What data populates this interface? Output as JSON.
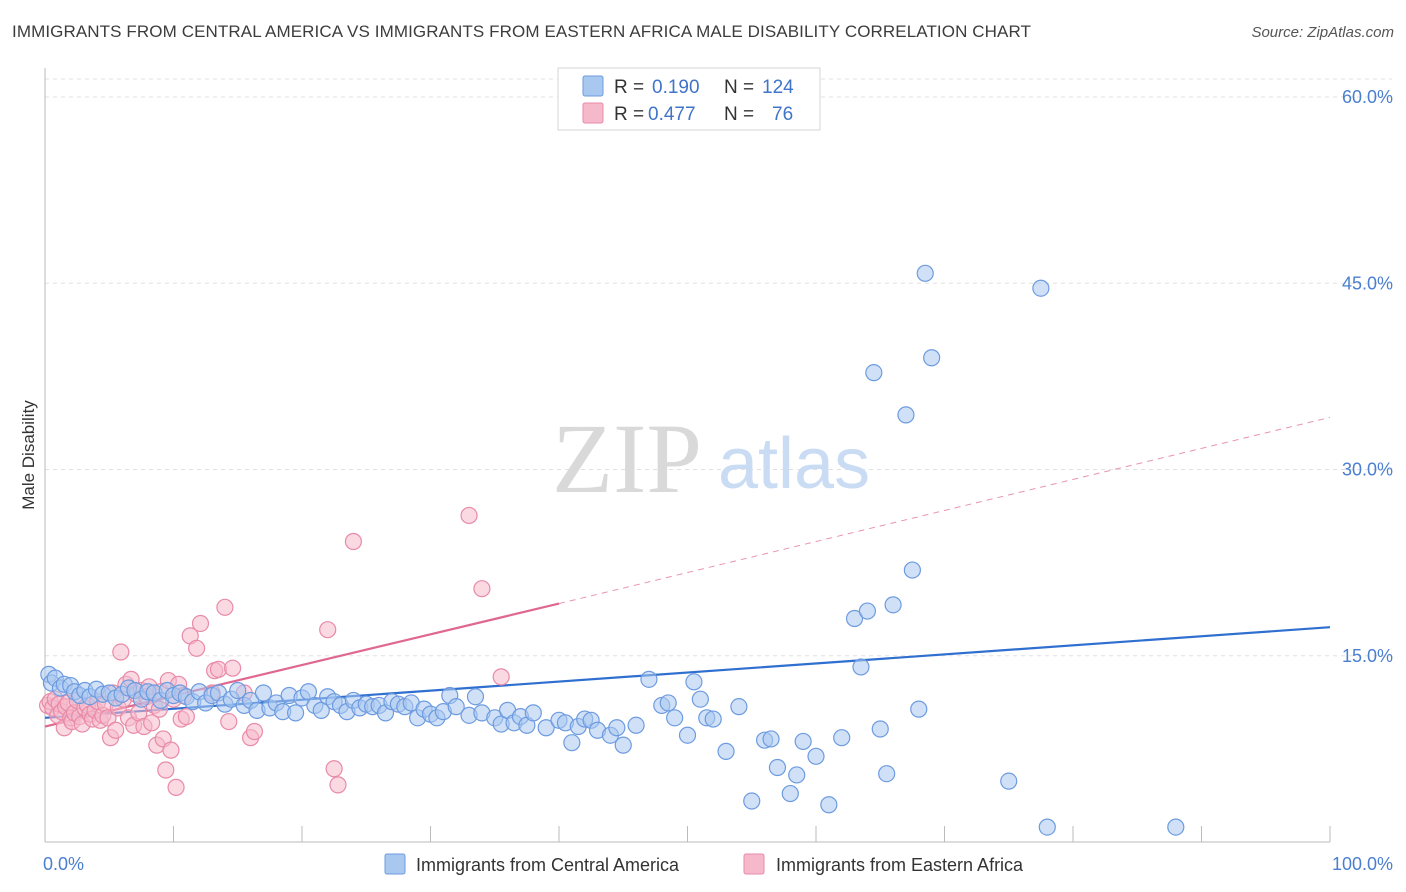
{
  "title": "IMMIGRANTS FROM CENTRAL AMERICA VS IMMIGRANTS FROM EASTERN AFRICA MALE DISABILITY CORRELATION CHART",
  "source": "Source: ZipAtlas.com",
  "watermark": {
    "zip": "ZIP",
    "atlas": "atlas"
  },
  "legend": {
    "rows": [
      {
        "r_label": "R =",
        "r_value": "0.190",
        "n_label": "N =",
        "n_value": "124"
      },
      {
        "r_label": "R =",
        "r_value": "0.477",
        "n_label": "N =",
        "n_value": "76"
      }
    ]
  },
  "bottom_legend": [
    "Immigrants from Central America",
    "Immigrants from Eastern Africa"
  ],
  "colors": {
    "blue_fill": "#a9c8f0",
    "blue_stroke": "#6d9be0",
    "blue_line": "#2f6fd0",
    "pink_fill": "#f6b9cc",
    "pink_stroke": "#e88aa8",
    "pink_line": "#e0678f",
    "grid": "#e0e0e0",
    "axis_label": "#4a7fd0"
  },
  "chart_data": {
    "type": "scatter",
    "title": "IMMIGRANTS FROM CENTRAL AMERICA VS IMMIGRANTS FROM EASTERN AFRICA MALE DISABILITY CORRELATION CHART",
    "xlabel": "",
    "ylabel": "Male Disability",
    "xlim": [
      0,
      100
    ],
    "ylim": [
      0,
      60
    ],
    "x_tick_labels": [
      "0.0%",
      "100.0%"
    ],
    "y_ticks": [
      15,
      30,
      45,
      60
    ],
    "y_tick_labels": [
      "15.0%",
      "30.0%",
      "45.0%",
      "60.0%"
    ],
    "grid": true,
    "legend_position": "top-center",
    "series": [
      {
        "name": "Immigrants from Central America",
        "r": 0.19,
        "n": 124,
        "trend": {
          "x0": 0,
          "y0": 10.0,
          "x1": 100,
          "y1": 17.3
        },
        "points": [
          [
            0.3,
            13.5
          ],
          [
            0.5,
            12.8
          ],
          [
            0.8,
            13.2
          ],
          [
            1.2,
            12.4
          ],
          [
            1.5,
            12.7
          ],
          [
            2.0,
            12.6
          ],
          [
            2.3,
            12.1
          ],
          [
            2.7,
            11.8
          ],
          [
            3.1,
            12.2
          ],
          [
            3.5,
            11.7
          ],
          [
            4.0,
            12.3
          ],
          [
            4.5,
            11.9
          ],
          [
            5.0,
            12.0
          ],
          [
            5.5,
            11.6
          ],
          [
            6.0,
            11.9
          ],
          [
            6.5,
            12.4
          ],
          [
            7.0,
            12.2
          ],
          [
            7.5,
            11.5
          ],
          [
            8.0,
            12.1
          ],
          [
            8.5,
            12.0
          ],
          [
            9.0,
            11.4
          ],
          [
            9.5,
            12.2
          ],
          [
            10.0,
            11.8
          ],
          [
            10.5,
            12.0
          ],
          [
            11.0,
            11.7
          ],
          [
            11.5,
            11.3
          ],
          [
            12.0,
            12.1
          ],
          [
            12.5,
            11.2
          ],
          [
            13.0,
            11.8
          ],
          [
            13.5,
            12.0
          ],
          [
            14.0,
            11.1
          ],
          [
            14.5,
            11.5
          ],
          [
            15.0,
            12.2
          ],
          [
            15.5,
            11.0
          ],
          [
            16.0,
            11.4
          ],
          [
            16.5,
            10.6
          ],
          [
            17.0,
            12.0
          ],
          [
            17.5,
            10.8
          ],
          [
            18.0,
            11.2
          ],
          [
            18.5,
            10.5
          ],
          [
            19.0,
            11.8
          ],
          [
            19.5,
            10.4
          ],
          [
            20.0,
            11.6
          ],
          [
            20.5,
            12.1
          ],
          [
            21.0,
            11.0
          ],
          [
            21.5,
            10.6
          ],
          [
            22.0,
            11.7
          ],
          [
            22.5,
            11.3
          ],
          [
            23.0,
            11.0
          ],
          [
            23.5,
            10.5
          ],
          [
            24.0,
            11.4
          ],
          [
            24.5,
            10.8
          ],
          [
            25.0,
            11.1
          ],
          [
            25.5,
            10.9
          ],
          [
            26.0,
            11.0
          ],
          [
            26.5,
            10.4
          ],
          [
            27.0,
            11.3
          ],
          [
            27.5,
            11.1
          ],
          [
            28.0,
            10.9
          ],
          [
            28.5,
            11.2
          ],
          [
            29.0,
            10.0
          ],
          [
            29.5,
            10.7
          ],
          [
            30.0,
            10.3
          ],
          [
            30.5,
            10.0
          ],
          [
            31.0,
            10.5
          ],
          [
            31.5,
            11.8
          ],
          [
            32.0,
            10.9
          ],
          [
            33.0,
            10.2
          ],
          [
            33.5,
            11.7
          ],
          [
            34.0,
            10.4
          ],
          [
            35.0,
            10.0
          ],
          [
            35.5,
            9.5
          ],
          [
            36.0,
            10.6
          ],
          [
            36.5,
            9.6
          ],
          [
            37.0,
            10.1
          ],
          [
            37.5,
            9.4
          ],
          [
            38.0,
            10.4
          ],
          [
            39.0,
            9.2
          ],
          [
            40.0,
            9.8
          ],
          [
            40.5,
            9.6
          ],
          [
            41.0,
            8.0
          ],
          [
            41.5,
            9.3
          ],
          [
            42.0,
            9.9
          ],
          [
            42.5,
            9.8
          ],
          [
            43.0,
            9.0
          ],
          [
            44.0,
            8.6
          ],
          [
            44.5,
            9.2
          ],
          [
            45.0,
            7.8
          ],
          [
            46.0,
            9.4
          ],
          [
            47.0,
            13.1
          ],
          [
            48.0,
            11.0
          ],
          [
            48.5,
            11.2
          ],
          [
            49.0,
            10.0
          ],
          [
            50.0,
            8.6
          ],
          [
            50.5,
            12.9
          ],
          [
            51.0,
            11.5
          ],
          [
            51.5,
            10.0
          ],
          [
            52.0,
            9.9
          ],
          [
            53.0,
            7.3
          ],
          [
            54.0,
            10.9
          ],
          [
            55.0,
            3.3
          ],
          [
            56.0,
            8.2
          ],
          [
            56.5,
            8.3
          ],
          [
            57.0,
            6.0
          ],
          [
            58.0,
            3.9
          ],
          [
            58.5,
            5.4
          ],
          [
            59.0,
            8.1
          ],
          [
            60.0,
            6.9
          ],
          [
            61.0,
            3.0
          ],
          [
            62.0,
            8.4
          ],
          [
            63.0,
            18.0
          ],
          [
            63.5,
            14.1
          ],
          [
            64.0,
            18.6
          ],
          [
            64.5,
            37.8
          ],
          [
            65.0,
            9.1
          ],
          [
            65.5,
            5.5
          ],
          [
            66.0,
            19.1
          ],
          [
            67.0,
            34.4
          ],
          [
            67.5,
            21.9
          ],
          [
            68.0,
            10.7
          ],
          [
            68.5,
            45.8
          ],
          [
            69.0,
            39.0
          ],
          [
            75.0,
            4.9
          ],
          [
            77.5,
            44.6
          ],
          [
            78.0,
            1.2
          ],
          [
            88.0,
            1.2
          ]
        ]
      },
      {
        "name": "Immigrants from Eastern Africa",
        "r": 0.477,
        "n": 76,
        "trend": {
          "x0": 0,
          "y0": 9.3,
          "x1": 40,
          "y1": 19.2,
          "dashed_to": {
            "x": 100,
            "y": 34.2
          }
        },
        "points": [
          [
            0.2,
            11.0
          ],
          [
            0.4,
            11.3
          ],
          [
            0.6,
            10.8
          ],
          [
            0.8,
            11.5
          ],
          [
            1.0,
            10.2
          ],
          [
            1.1,
            11.1
          ],
          [
            1.3,
            10.5
          ],
          [
            1.5,
            9.2
          ],
          [
            1.6,
            10.9
          ],
          [
            1.8,
            11.2
          ],
          [
            2.0,
            10.0
          ],
          [
            2.1,
            9.7
          ],
          [
            2.3,
            10.4
          ],
          [
            2.5,
            11.4
          ],
          [
            2.7,
            10.1
          ],
          [
            2.9,
            9.5
          ],
          [
            3.1,
            10.8
          ],
          [
            3.3,
            11.0
          ],
          [
            3.5,
            10.3
          ],
          [
            3.7,
            9.9
          ],
          [
            3.9,
            10.6
          ],
          [
            4.1,
            11.3
          ],
          [
            4.3,
            9.8
          ],
          [
            4.5,
            10.2
          ],
          [
            4.7,
            11.1
          ],
          [
            4.9,
            10.0
          ],
          [
            5.1,
            8.4
          ],
          [
            5.3,
            12.0
          ],
          [
            5.5,
            9.0
          ],
          [
            5.7,
            10.8
          ],
          [
            5.9,
            15.3
          ],
          [
            6.1,
            11.5
          ],
          [
            6.3,
            12.7
          ],
          [
            6.5,
            10.0
          ],
          [
            6.7,
            13.1
          ],
          [
            6.9,
            9.4
          ],
          [
            7.1,
            11.9
          ],
          [
            7.3,
            10.4
          ],
          [
            7.5,
            12.2
          ],
          [
            7.7,
            9.3
          ],
          [
            7.9,
            11.7
          ],
          [
            8.1,
            12.5
          ],
          [
            8.3,
            9.6
          ],
          [
            8.5,
            11.0
          ],
          [
            8.7,
            7.8
          ],
          [
            8.9,
            10.7
          ],
          [
            9.0,
            12.1
          ],
          [
            9.2,
            8.3
          ],
          [
            9.4,
            5.8
          ],
          [
            9.6,
            13.0
          ],
          [
            9.8,
            7.4
          ],
          [
            10.0,
            11.5
          ],
          [
            10.2,
            4.4
          ],
          [
            10.4,
            12.7
          ],
          [
            10.6,
            9.9
          ],
          [
            10.8,
            11.8
          ],
          [
            11.0,
            10.1
          ],
          [
            11.3,
            16.6
          ],
          [
            11.8,
            15.6
          ],
          [
            12.1,
            17.6
          ],
          [
            13.0,
            12.0
          ],
          [
            13.2,
            13.8
          ],
          [
            13.5,
            13.9
          ],
          [
            14.0,
            18.9
          ],
          [
            14.3,
            9.7
          ],
          [
            14.6,
            14.0
          ],
          [
            15.5,
            12.0
          ],
          [
            16.0,
            8.4
          ],
          [
            16.3,
            8.9
          ],
          [
            22.0,
            17.1
          ],
          [
            22.5,
            5.9
          ],
          [
            22.8,
            4.6
          ],
          [
            24.0,
            24.2
          ],
          [
            33.0,
            26.3
          ],
          [
            34.0,
            20.4
          ],
          [
            35.5,
            13.3
          ]
        ]
      }
    ]
  }
}
